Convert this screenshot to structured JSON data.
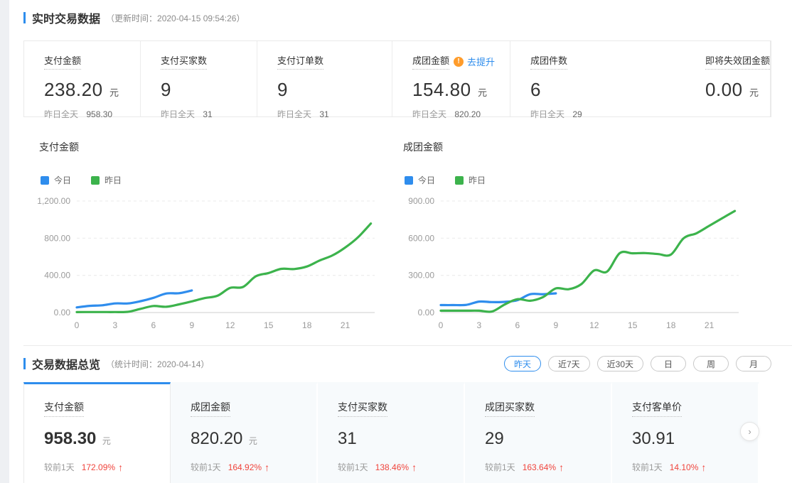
{
  "section1": {
    "title": "实时交易数据",
    "subtitle": "（更新时间：2020-04-15 09:54:26）"
  },
  "stats": [
    {
      "label": "支付金额",
      "value": "238.20",
      "unit": "元",
      "sub_label": "昨日全天",
      "sub_value": "958.30"
    },
    {
      "label": "支付买家数",
      "value": "9",
      "unit": "",
      "sub_label": "昨日全天",
      "sub_value": "31"
    },
    {
      "label": "支付订单数",
      "value": "9",
      "unit": "",
      "sub_label": "昨日全天",
      "sub_value": "31"
    },
    {
      "label": "成团金额",
      "value": "154.80",
      "unit": "元",
      "sub_label": "昨日全天",
      "sub_value": "820.20",
      "warning": "!",
      "link": "去提升"
    },
    {
      "label": "成团件数",
      "value": "6",
      "unit": "",
      "sub_label": "昨日全天",
      "sub_value": "29"
    },
    {
      "label": "即将失效团金额",
      "value": "0.00",
      "unit": "元"
    }
  ],
  "chart_data": [
    {
      "type": "line",
      "title": "支付金额",
      "legend_position": "top-left",
      "grid": "dashed-horizontal",
      "xlim": [
        0,
        23.3
      ],
      "ylim": [
        0,
        1200
      ],
      "x_ticks": [
        0,
        3,
        6,
        9,
        12,
        15,
        18,
        21
      ],
      "y_tick_values": [
        0,
        400,
        800,
        1200
      ],
      "y_ticks": [
        "0.00",
        "400.00",
        "800.00",
        "1,200.00"
      ],
      "series": [
        {
          "name": "今日",
          "color": "#2f8ded",
          "x": [
            0,
            1,
            2,
            3,
            4,
            5,
            6,
            7,
            8,
            9
          ],
          "values": [
            55,
            72,
            78,
            98,
            98,
            122,
            158,
            205,
            208,
            238
          ]
        },
        {
          "name": "昨日",
          "color": "#3cb34c",
          "x": [
            0,
            1,
            2,
            3,
            4,
            5,
            6,
            7,
            8,
            9,
            10,
            11,
            12,
            13,
            14,
            15,
            16,
            17,
            18,
            19,
            20,
            21,
            22,
            23
          ],
          "values": [
            5,
            5,
            5,
            5,
            8,
            40,
            70,
            62,
            88,
            120,
            155,
            180,
            265,
            275,
            390,
            425,
            470,
            468,
            495,
            560,
            615,
            700,
            810,
            958
          ]
        }
      ]
    },
    {
      "type": "line",
      "title": "成团金额",
      "legend_position": "top-left",
      "grid": "dashed-horizontal",
      "xlim": [
        0,
        23.3
      ],
      "ylim": [
        0,
        900
      ],
      "x_ticks": [
        0,
        3,
        6,
        9,
        12,
        15,
        18,
        21
      ],
      "y_tick_values": [
        0,
        300,
        600,
        900
      ],
      "y_ticks": [
        "0.00",
        "300.00",
        "600.00",
        "900.00"
      ],
      "series": [
        {
          "name": "今日",
          "color": "#2f8ded",
          "x": [
            0,
            1,
            2,
            3,
            4,
            5,
            6,
            7,
            8,
            9
          ],
          "values": [
            60,
            60,
            62,
            88,
            84,
            86,
            100,
            148,
            148,
            155
          ]
        },
        {
          "name": "昨日",
          "color": "#3cb34c",
          "x": [
            0,
            1,
            2,
            3,
            4,
            5,
            6,
            7,
            8,
            9,
            10,
            11,
            12,
            13,
            14,
            15,
            16,
            17,
            18,
            19,
            20,
            21,
            22,
            23
          ],
          "values": [
            15,
            15,
            15,
            15,
            8,
            65,
            108,
            95,
            125,
            195,
            188,
            230,
            340,
            330,
            480,
            478,
            480,
            472,
            468,
            600,
            640,
            700,
            760,
            820
          ]
        }
      ]
    }
  ],
  "section2": {
    "title": "交易数据总览",
    "subtitle": "（统计时间：2020-04-14）",
    "filters": [
      {
        "label": "昨天",
        "active": true
      },
      {
        "label": "近7天"
      },
      {
        "label": "近30天"
      },
      {
        "label": "日"
      },
      {
        "label": "周"
      },
      {
        "label": "月"
      }
    ],
    "cards": [
      {
        "label": "支付金额",
        "value": "958.30",
        "unit": "元",
        "compare_label": "较前1天",
        "percent": "172.09%",
        "direction": "up",
        "active": true
      },
      {
        "label": "成团金额",
        "value": "820.20",
        "unit": "元",
        "compare_label": "较前1天",
        "percent": "164.92%",
        "direction": "up"
      },
      {
        "label": "支付买家数",
        "value": "31",
        "unit": "",
        "compare_label": "较前1天",
        "percent": "138.46%",
        "direction": "up"
      },
      {
        "label": "成团买家数",
        "value": "29",
        "unit": "",
        "compare_label": "较前1天",
        "percent": "163.64%",
        "direction": "up"
      },
      {
        "label": "支付客单价",
        "value": "30.91",
        "unit": "",
        "compare_label": "较前1天",
        "percent": "14.10%",
        "direction": "up"
      }
    ],
    "next_arrow": "›"
  },
  "colors": {
    "accent_blue": "#2e8ded",
    "line_today": "#2f8ded",
    "line_yesterday": "#3cb34c",
    "warning_orange": "#ff9c2b",
    "up_red": "#f0443c"
  }
}
